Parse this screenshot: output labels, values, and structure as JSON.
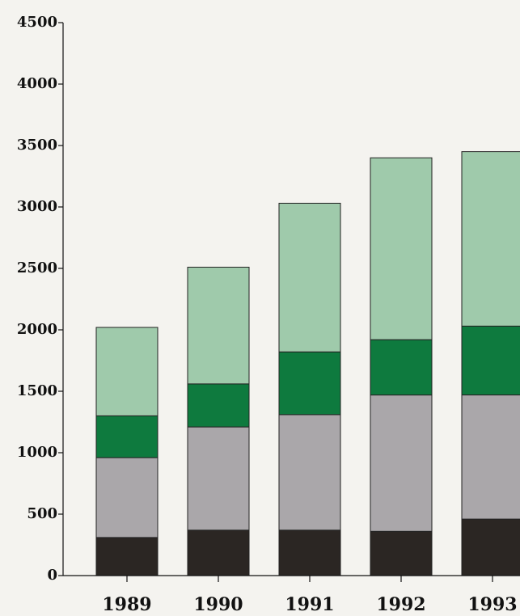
{
  "chart_data": {
    "type": "bar",
    "stacked": true,
    "categories": [
      "1989",
      "1990",
      "1991",
      "1992",
      "1993"
    ],
    "series": [
      {
        "values": [
          310,
          370,
          370,
          360,
          460
        ],
        "color": "#2b2623"
      },
      {
        "values": [
          650,
          840,
          940,
          1110,
          1010
        ],
        "color": "#aaa7aa"
      },
      {
        "values": [
          340,
          350,
          510,
          450,
          560
        ],
        "color": "#0e7a3e"
      },
      {
        "values": [
          720,
          950,
          1210,
          1480,
          1420
        ],
        "color": "#9fcaab"
      }
    ],
    "ylim": [
      0,
      4500
    ],
    "yticks": [
      "0",
      "500",
      "1000",
      "1500",
      "2000",
      "2500",
      "3000",
      "3500",
      "4000",
      "4500"
    ],
    "grid": false,
    "legend": "none"
  }
}
